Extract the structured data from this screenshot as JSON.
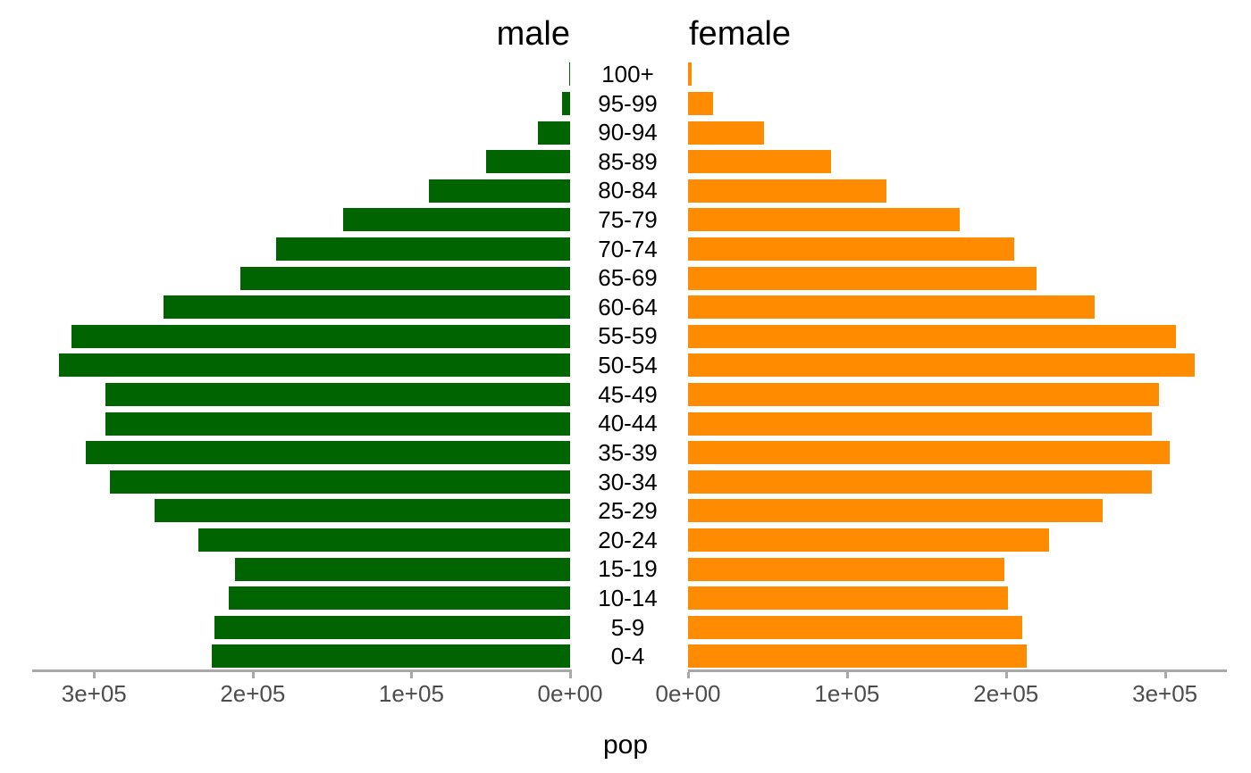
{
  "chart_data": {
    "type": "bar",
    "subtype": "population-pyramid",
    "orientation": "horizontal",
    "facets": {
      "left_title": "male",
      "right_title": "female"
    },
    "xlabel": "pop",
    "categories": [
      "100+",
      "95-99",
      "90-94",
      "85-89",
      "80-84",
      "75-79",
      "70-74",
      "65-69",
      "60-64",
      "55-59",
      "50-54",
      "45-49",
      "40-44",
      "35-39",
      "30-34",
      "25-29",
      "20-24",
      "15-19",
      "10-14",
      "5-9",
      "0-4"
    ],
    "series": [
      {
        "name": "male",
        "color": "#006400",
        "direction": "right-to-left",
        "values": [
          500,
          5000,
          20000,
          53000,
          89000,
          143000,
          185000,
          208000,
          256000,
          314000,
          322000,
          293000,
          293000,
          305000,
          290000,
          262000,
          234000,
          211000,
          215000,
          224000,
          226000
        ]
      },
      {
        "name": "female",
        "color": "#FF8C00",
        "direction": "left-to-right",
        "values": [
          2000,
          16000,
          48000,
          90000,
          125000,
          171000,
          205000,
          219000,
          256000,
          307000,
          319000,
          296000,
          292000,
          303000,
          292000,
          261000,
          227000,
          199000,
          201000,
          210000,
          213000
        ]
      }
    ],
    "x_axis": {
      "max": 339000,
      "ticks": [
        {
          "value": 0,
          "label": "0e+00"
        },
        {
          "value": 100000,
          "label": "1e+05"
        },
        {
          "value": 200000,
          "label": "2e+05"
        },
        {
          "value": 300000,
          "label": "3e+05"
        }
      ],
      "axis_line_color": "#A9A9A9",
      "tick_text_color": "#4D4D4D"
    },
    "legend": "none",
    "grid": "off",
    "background_color": "#FFFFFF"
  }
}
